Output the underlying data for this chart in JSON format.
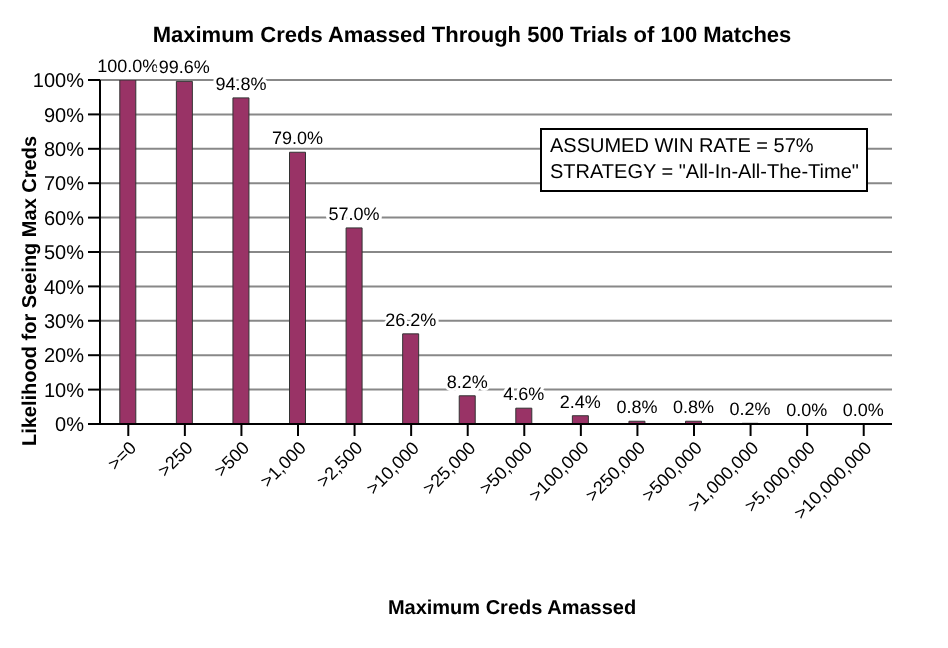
{
  "chart_data": {
    "type": "bar",
    "title": "Maximum Creds Amassed Through 500 Trials of 100 Matches",
    "xlabel": "Maximum Creds Amassed",
    "ylabel": "Likelihood for Seeing Max Creds",
    "categories": [
      ">=0",
      ">250",
      ">500",
      ">1,000",
      ">2,500",
      ">10,000",
      ">25,000",
      ">50,000",
      ">100,000",
      ">250,000",
      ">500,000",
      ">1,000,000",
      ">5,000,000",
      ">10,000,000"
    ],
    "values": [
      100.0,
      99.6,
      94.8,
      79.0,
      57.0,
      26.2,
      8.2,
      4.6,
      2.4,
      0.8,
      0.8,
      0.2,
      0.0,
      0.0
    ],
    "value_labels": [
      "100.0%",
      "99.6%",
      "94.8%",
      "79.0%",
      "57.0%",
      "26.2%",
      "8.2%",
      "4.6%",
      "2.4%",
      "0.8%",
      "0.8%",
      "0.2%",
      "0.0%",
      "0.0%"
    ],
    "color": "#993366",
    "ylim": [
      0,
      100
    ],
    "yticks": [
      {
        "value": 0,
        "label": "0%"
      },
      {
        "value": 10,
        "label": "10%"
      },
      {
        "value": 20,
        "label": "20%"
      },
      {
        "value": 30,
        "label": "30%"
      },
      {
        "value": 40,
        "label": "40%"
      },
      {
        "value": 50,
        "label": "50%"
      },
      {
        "value": 60,
        "label": "60%"
      },
      {
        "value": 70,
        "label": "70%"
      },
      {
        "value": 80,
        "label": "80%"
      },
      {
        "value": 90,
        "label": "90%"
      },
      {
        "value": 100,
        "label": "100%"
      }
    ],
    "grid": "y",
    "annotations": [
      "ASSUMED WIN RATE = 57%",
      "STRATEGY = \"All-In-All-The-Time\""
    ]
  }
}
